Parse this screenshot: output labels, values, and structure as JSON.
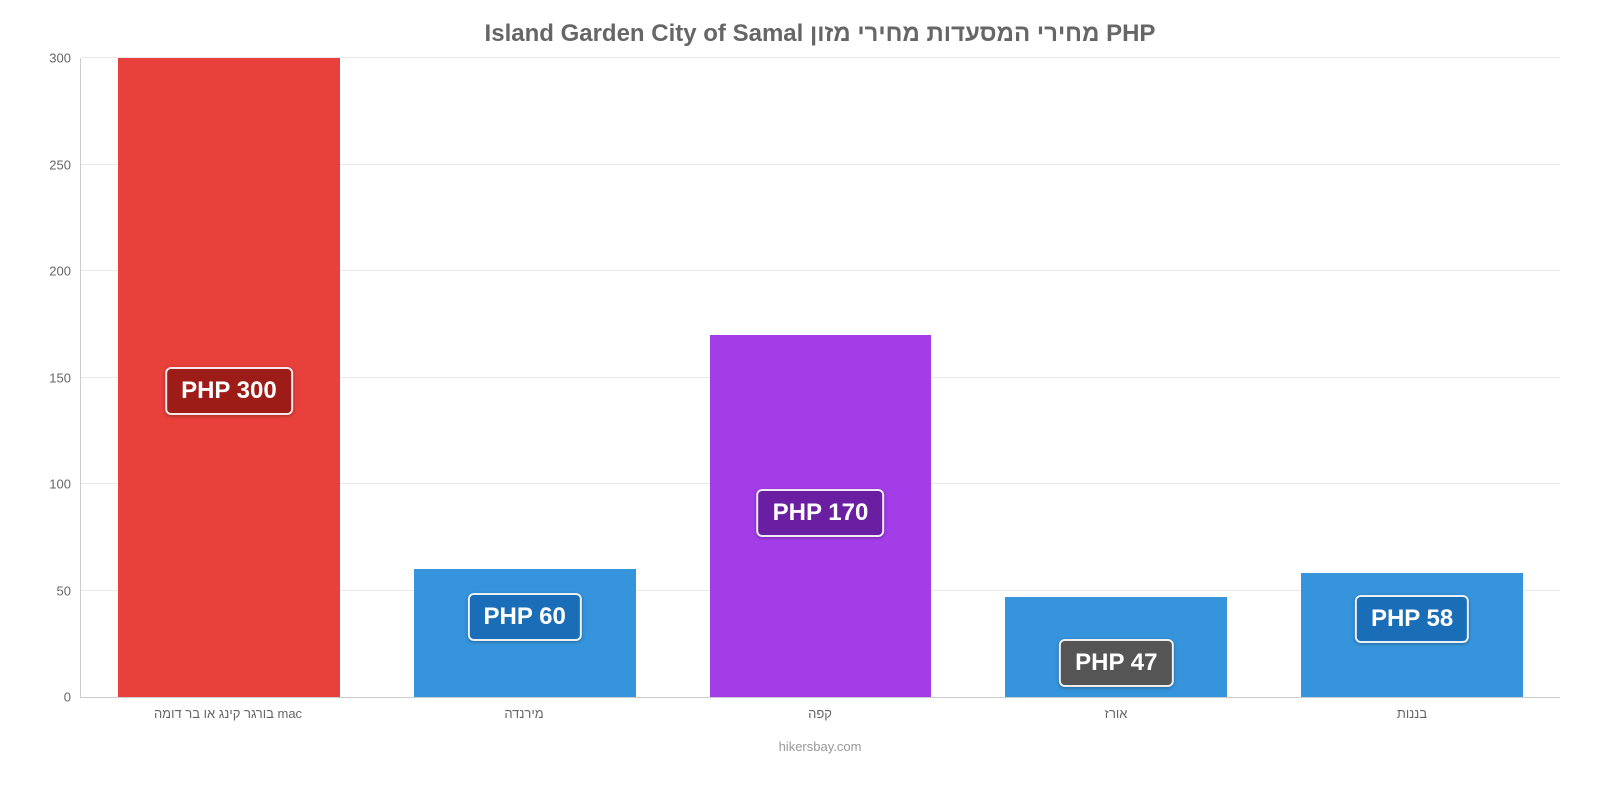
{
  "chart": {
    "type": "bar",
    "title": "Island Garden City of Samal מחירי המסעדות מחירי מזון PHP",
    "title_fontsize": 24,
    "title_color": "#666666",
    "background_color": "#ffffff",
    "grid_color": "#e8e8e8",
    "axis_color": "#cccccc",
    "label_color": "#666666",
    "currency": "PHP",
    "ylim": [
      0,
      300
    ],
    "ytick_step": 50,
    "yticks": [
      0,
      50,
      100,
      150,
      200,
      250,
      300
    ],
    "bar_width_pct": 75,
    "categories": [
      "בורגר קינג או בר דומה mac",
      "מירנדה",
      "קפה",
      "אורז",
      "בננות"
    ],
    "values": [
      300,
      60,
      170,
      47,
      58
    ],
    "value_labels": [
      "PHP 300",
      "PHP 60",
      "PHP 170",
      "PHP 47",
      "PHP 58"
    ],
    "bar_colors": [
      "#e8403b",
      "#3694dc",
      "#a23de8",
      "#3694dc",
      "#3694dc"
    ],
    "label_bg_colors": [
      "#9e1c17",
      "#1a6eb8",
      "#6a1fa3",
      "#555555",
      "#1a6eb8"
    ],
    "label_fontsize": 24,
    "xlabel_fontsize": 13,
    "ylabel_fontsize": 13,
    "footer": "hikersbay.com",
    "footer_color": "#999999"
  }
}
